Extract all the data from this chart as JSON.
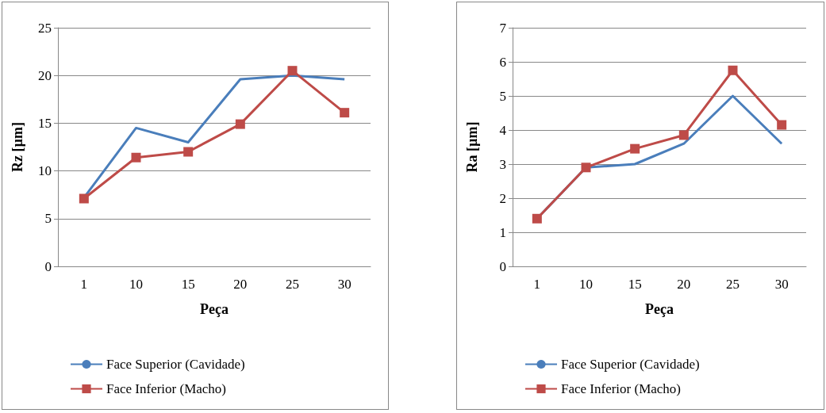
{
  "chart_data": [
    {
      "type": "line",
      "xlabel": "Peça",
      "ylabel": "Rz [µm]",
      "categories": [
        "1",
        "10",
        "15",
        "20",
        "25",
        "30"
      ],
      "series": [
        {
          "name": "Face Superior (Cavidade)",
          "color": "#4a7ebb",
          "marker": "none",
          "values": [
            7.2,
            14.5,
            13,
            19.6,
            20,
            19.6
          ]
        },
        {
          "name": "Face Inferior (Macho)",
          "color": "#be4b48",
          "marker": "square",
          "values": [
            7.1,
            11.4,
            12,
            14.9,
            20.5,
            16.1
          ]
        }
      ],
      "ylim": [
        0,
        25
      ],
      "yticks": [
        0,
        5,
        10,
        15,
        20,
        25
      ],
      "grid": "y",
      "legend": "bottom"
    },
    {
      "type": "line",
      "xlabel": "Peça",
      "ylabel": "Ra [µm]",
      "categories": [
        "1",
        "10",
        "15",
        "20",
        "25",
        "30"
      ],
      "series": [
        {
          "name": "Face Superior (Cavidade)",
          "color": "#4a7ebb",
          "marker": "none",
          "values": [
            1.4,
            2.9,
            3.0,
            3.6,
            5.0,
            3.6
          ]
        },
        {
          "name": "Face Inferior (Macho)",
          "color": "#be4b48",
          "marker": "square",
          "values": [
            1.4,
            2.9,
            3.45,
            3.85,
            5.75,
            4.15
          ]
        }
      ],
      "ylim": [
        0,
        7
      ],
      "yticks": [
        0,
        1,
        2,
        3,
        4,
        5,
        6,
        7
      ],
      "grid": "y",
      "legend": "bottom"
    }
  ]
}
